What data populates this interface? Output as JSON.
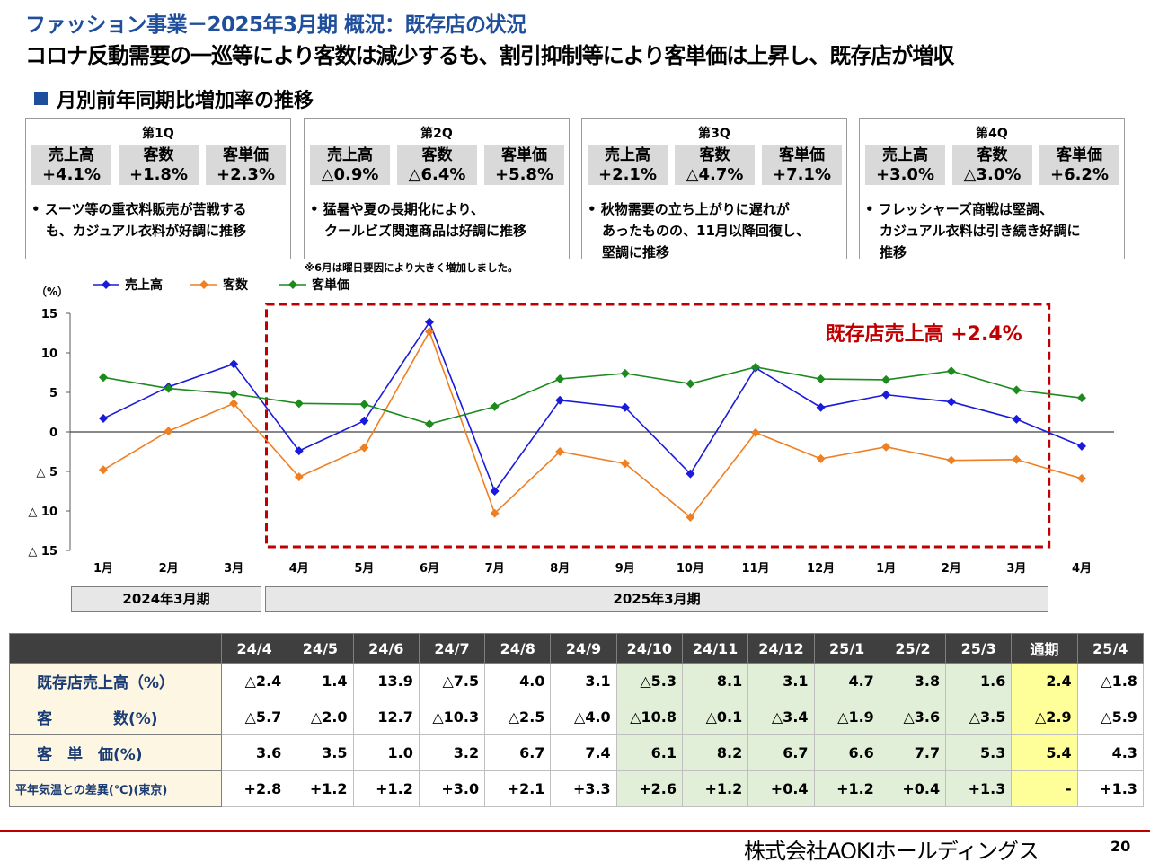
{
  "header": {
    "title": "ファッション事業－2025年3月期 概況：既存店の状況",
    "subtitle": "コロナ反動需要の一巡等により客数は減少するも、割引抑制等により客単価は上昇し、既存店が増収",
    "section_title": "月別前年同期比増加率の推移"
  },
  "quarters": [
    {
      "name": "第1Q",
      "metrics": [
        {
          "label": "売上高",
          "value": "+4.1%"
        },
        {
          "label": "客数",
          "value": "+1.8%"
        },
        {
          "label": "客単価",
          "value": "+2.3%"
        }
      ],
      "note_lines": [
        "• スーツ等の重衣料販売が苦戦する",
        "も、カジュアル衣料が好調に推移"
      ]
    },
    {
      "name": "第2Q",
      "metrics": [
        {
          "label": "売上高",
          "value": "△0.9%"
        },
        {
          "label": "客数",
          "value": "△6.4%"
        },
        {
          "label": "客単価",
          "value": "+5.8%"
        }
      ],
      "note_lines": [
        "• 猛暑や夏の長期化により、",
        "クールビズ関連商品は好調に推移"
      ]
    },
    {
      "name": "第3Q",
      "metrics": [
        {
          "label": "売上高",
          "value": "+2.1%"
        },
        {
          "label": "客数",
          "value": "△4.7%"
        },
        {
          "label": "客単価",
          "value": "+7.1%"
        }
      ],
      "note_lines": [
        "• 秋物需要の立ち上がりに遅れが",
        "あったものの、11月以降回復し、",
        "堅調に推移"
      ]
    },
    {
      "name": "第4Q",
      "metrics": [
        {
          "label": "売上高",
          "value": "+3.0%"
        },
        {
          "label": "客数",
          "value": "△3.0%"
        },
        {
          "label": "客単価",
          "value": "+6.2%"
        }
      ],
      "note_lines": [
        "• フレッシャーズ商戦は堅調、",
        "カジュアル衣料は引き続き好調に",
        "推移"
      ]
    }
  ],
  "note_june": "※6月は曜日要因により大きく増加しました。",
  "chart_data": {
    "type": "line",
    "y_unit_label": "（%）",
    "categories": [
      "1月",
      "2月",
      "3月",
      "4月",
      "5月",
      "6月",
      "7月",
      "8月",
      "9月",
      "10月",
      "11月",
      "12月",
      "1月",
      "2月",
      "3月",
      "4月"
    ],
    "y_tick_labels": [
      "15",
      "10",
      "5",
      "0",
      "△ 5",
      "△ 10",
      "△ 15"
    ],
    "y_ticks": [
      15,
      10,
      5,
      0,
      -5,
      -10,
      -15
    ],
    "ylim": [
      -15,
      15
    ],
    "series": [
      {
        "name": "売上高",
        "color": "#1a1adb",
        "values": [
          1.7,
          5.7,
          8.6,
          -2.4,
          1.4,
          13.9,
          -7.5,
          4.0,
          3.1,
          -5.3,
          8.1,
          3.1,
          4.7,
          3.8,
          1.6,
          -1.8
        ]
      },
      {
        "name": "客数",
        "color": "#f07f22",
        "values": [
          -4.8,
          0.1,
          3.6,
          -5.7,
          -2.0,
          12.7,
          -10.3,
          -2.5,
          -4.0,
          -10.8,
          -0.1,
          -3.4,
          -1.9,
          -3.6,
          -3.5,
          -5.9
        ]
      },
      {
        "name": "客単価",
        "color": "#1c8a1c",
        "values": [
          6.9,
          5.5,
          4.8,
          3.6,
          3.5,
          1.0,
          3.2,
          6.7,
          7.4,
          6.1,
          8.2,
          6.7,
          6.6,
          7.7,
          5.3,
          4.3
        ]
      }
    ],
    "highlight": {
      "label": "既存店売上高 +2.4%",
      "from_index": 3,
      "to_index": 14,
      "color": "#c00000"
    },
    "legend_position": "top-left",
    "grid": false
  },
  "period_labels": [
    "2024年3月期",
    "2025年3月期"
  ],
  "table": {
    "columns": [
      "24/4",
      "24/5",
      "24/6",
      "24/7",
      "24/8",
      "24/9",
      "24/10",
      "24/11",
      "24/12",
      "25/1",
      "25/2",
      "25/3",
      "通期",
      "25/4"
    ],
    "col_styles": [
      "",
      "",
      "",
      "",
      "",
      "",
      "g",
      "g",
      "g",
      "g",
      "g",
      "g",
      "y",
      ""
    ],
    "rows": [
      {
        "label": "既存店売上高（%）",
        "values": [
          "△2.4",
          "1.4",
          "13.9",
          "△7.5",
          "4.0",
          "3.1",
          "△5.3",
          "8.1",
          "3.1",
          "4.7",
          "3.8",
          "1.6",
          "2.4",
          "△1.8"
        ]
      },
      {
        "label": "客　　　　数(%)",
        "values": [
          "△5.7",
          "△2.0",
          "12.7",
          "△10.3",
          "△2.5",
          "△4.0",
          "△10.8",
          "△0.1",
          "△3.4",
          "△1.9",
          "△3.6",
          "△3.5",
          "△2.9",
          "△5.9"
        ]
      },
      {
        "label": "客　単　価(%)",
        "values": [
          "3.6",
          "3.5",
          "1.0",
          "3.2",
          "6.7",
          "7.4",
          "6.1",
          "8.2",
          "6.7",
          "6.6",
          "7.7",
          "5.3",
          "5.4",
          "4.3"
        ]
      },
      {
        "label": "平年気温との差異(℃)(東京)",
        "values": [
          "+2.8",
          "+1.2",
          "+1.2",
          "+3.0",
          "+2.1",
          "+3.3",
          "+2.6",
          "+1.2",
          "+0.4",
          "+1.2",
          "+0.4",
          "+1.3",
          "-",
          "+1.3"
        ]
      }
    ]
  },
  "footer": {
    "company": "株式会社AOKIホールディングス",
    "page_number": "20"
  },
  "colors": {
    "title_blue": "#1f4e9c",
    "footer_red": "#c00000",
    "green_cell": "#e2efd8",
    "yellow_cell": "#ffff99"
  }
}
